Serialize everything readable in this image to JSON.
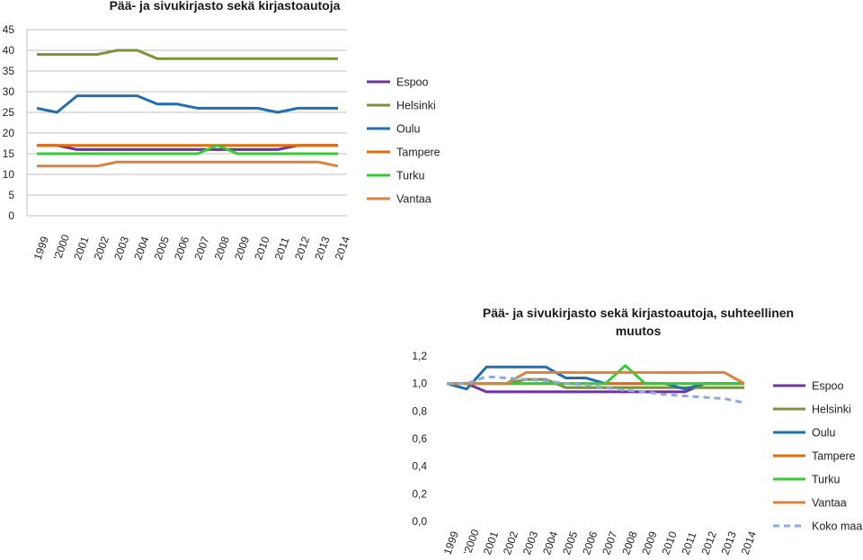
{
  "chart_data": [
    {
      "type": "line",
      "title": "Pää- ja sivukirjasto sekä kirjastoautoja",
      "categories": [
        "1999",
        "'2000",
        "2001",
        "2002",
        "2003",
        "2004",
        "2005",
        "2006",
        "2007",
        "2008",
        "2009",
        "2010",
        "2011",
        "2012",
        "2013",
        "2014"
      ],
      "ylim": [
        0,
        45
      ],
      "yticks": [
        "0",
        "5",
        "10",
        "15",
        "20",
        "25",
        "30",
        "35",
        "40",
        "45"
      ],
      "grid": true,
      "legend_position": "right",
      "series": [
        {
          "name": "Espoo",
          "color": "#7030a0",
          "dashed": false,
          "values": [
            17,
            17,
            16,
            16,
            16,
            16,
            16,
            16,
            16,
            16,
            16,
            16,
            16,
            17,
            17,
            17
          ]
        },
        {
          "name": "Helsinki",
          "color": "#77933c",
          "dashed": false,
          "values": [
            39,
            39,
            39,
            39,
            40,
            40,
            38,
            38,
            38,
            38,
            38,
            38,
            38,
            38,
            38,
            38
          ]
        },
        {
          "name": "Oulu",
          "color": "#1f6fb0",
          "dashed": false,
          "values": [
            26,
            25,
            29,
            29,
            29,
            29,
            27,
            27,
            26,
            26,
            26,
            26,
            25,
            26,
            26,
            26
          ]
        },
        {
          "name": "Tampere",
          "color": "#e36c0a",
          "dashed": false,
          "values": [
            17,
            17,
            17,
            17,
            17,
            17,
            17,
            17,
            17,
            17,
            17,
            17,
            17,
            17,
            17,
            17
          ]
        },
        {
          "name": "Turku",
          "color": "#33cc33",
          "dashed": false,
          "values": [
            15,
            15,
            15,
            15,
            15,
            15,
            15,
            15,
            15,
            17,
            15,
            15,
            15,
            15,
            15,
            15
          ]
        },
        {
          "name": "Vantaa",
          "color": "#d9833f",
          "dashed": false,
          "values": [
            12,
            12,
            12,
            12,
            13,
            13,
            13,
            13,
            13,
            13,
            13,
            13,
            13,
            13,
            13,
            12
          ]
        }
      ]
    },
    {
      "type": "line",
      "title": "Pää- ja sivukirjasto sekä kirjastoautoja, suhteellinen muutos",
      "categories": [
        "1999",
        "'2000",
        "2001",
        "2002",
        "2003",
        "2004",
        "2005",
        "2006",
        "2007",
        "2008",
        "2009",
        "2010",
        "2011",
        "2012",
        "2013",
        "2014"
      ],
      "ylim": [
        0,
        1.2
      ],
      "yticks": [
        "0,0",
        "0,2",
        "0,4",
        "0,6",
        "0,8",
        "1,0",
        "1,2"
      ],
      "grid": false,
      "legend_position": "right",
      "series": [
        {
          "name": "Espoo",
          "color": "#7030a0",
          "dashed": false,
          "values": [
            1.0,
            1.0,
            0.94,
            0.94,
            0.94,
            0.94,
            0.94,
            0.94,
            0.94,
            0.94,
            0.94,
            0.94,
            0.94,
            1.0,
            1.0,
            1.0
          ]
        },
        {
          "name": "Helsinki",
          "color": "#77933c",
          "dashed": false,
          "values": [
            1.0,
            1.0,
            1.0,
            1.0,
            1.03,
            1.03,
            0.97,
            0.97,
            0.97,
            0.97,
            0.97,
            0.97,
            0.97,
            0.97,
            0.97,
            0.97
          ]
        },
        {
          "name": "Oulu",
          "color": "#1f6fb0",
          "dashed": false,
          "values": [
            1.0,
            0.96,
            1.12,
            1.12,
            1.12,
            1.12,
            1.04,
            1.04,
            1.0,
            1.0,
            1.0,
            1.0,
            0.96,
            1.0,
            1.0,
            1.0
          ]
        },
        {
          "name": "Tampere",
          "color": "#e36c0a",
          "dashed": false,
          "values": [
            1.0,
            1.0,
            1.0,
            1.0,
            1.0,
            1.0,
            1.0,
            1.0,
            1.0,
            1.0,
            1.0,
            1.0,
            1.0,
            1.0,
            1.0,
            1.0
          ]
        },
        {
          "name": "Turku",
          "color": "#33cc33",
          "dashed": false,
          "values": [
            1.0,
            1.0,
            1.0,
            1.0,
            1.0,
            1.0,
            1.0,
            1.0,
            1.0,
            1.13,
            1.0,
            1.0,
            1.0,
            1.0,
            1.0,
            1.0
          ]
        },
        {
          "name": "Vantaa",
          "color": "#d9833f",
          "dashed": false,
          "values": [
            1.0,
            1.0,
            1.0,
            1.0,
            1.08,
            1.08,
            1.08,
            1.08,
            1.08,
            1.08,
            1.08,
            1.08,
            1.08,
            1.08,
            1.08,
            1.0
          ]
        },
        {
          "name": "Koko maa",
          "color": "#8eaadb",
          "dashed": true,
          "values": [
            1.0,
            1.0,
            1.05,
            1.04,
            1.03,
            1.02,
            1.0,
            0.99,
            0.97,
            0.95,
            0.94,
            0.92,
            0.91,
            0.9,
            0.89,
            0.86
          ]
        }
      ]
    }
  ]
}
